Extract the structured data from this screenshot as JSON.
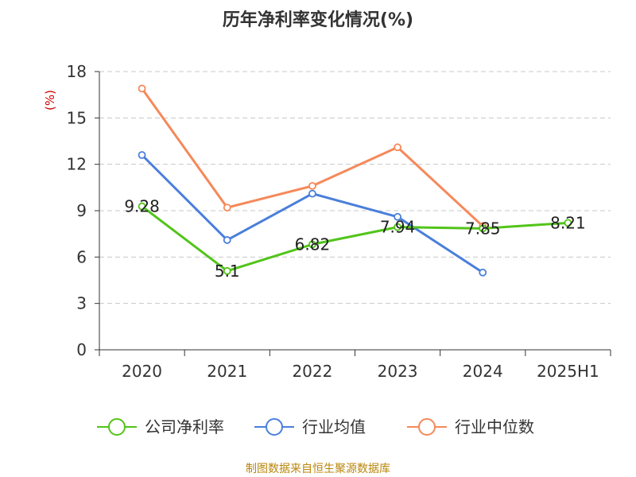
{
  "chart_data": {
    "type": "line",
    "title": "历年净利率变化情况(%)",
    "ylabel": "(%)",
    "xlabel": "",
    "categories": [
      "2020",
      "2021",
      "2022",
      "2023",
      "2024",
      "2025H1"
    ],
    "ylim": [
      0,
      18
    ],
    "yticks": [
      0,
      3,
      6,
      9,
      12,
      15,
      18
    ],
    "grid": true,
    "legend_position": "bottom",
    "series": [
      {
        "name": "公司净利率",
        "color": "#52c41a",
        "values": [
          9.28,
          5.1,
          6.82,
          7.94,
          7.85,
          8.21
        ],
        "show_labels": true
      },
      {
        "name": "行业均值",
        "color": "#4a7fdb",
        "values": [
          12.6,
          7.1,
          10.1,
          8.6,
          5.0,
          null
        ],
        "show_labels": false
      },
      {
        "name": "行业中位数",
        "color": "#f5895a",
        "values": [
          16.9,
          9.2,
          10.6,
          13.1,
          8.0,
          null
        ],
        "show_labels": false
      }
    ]
  },
  "source_text": "制图数据来自恒生聚源数据库"
}
